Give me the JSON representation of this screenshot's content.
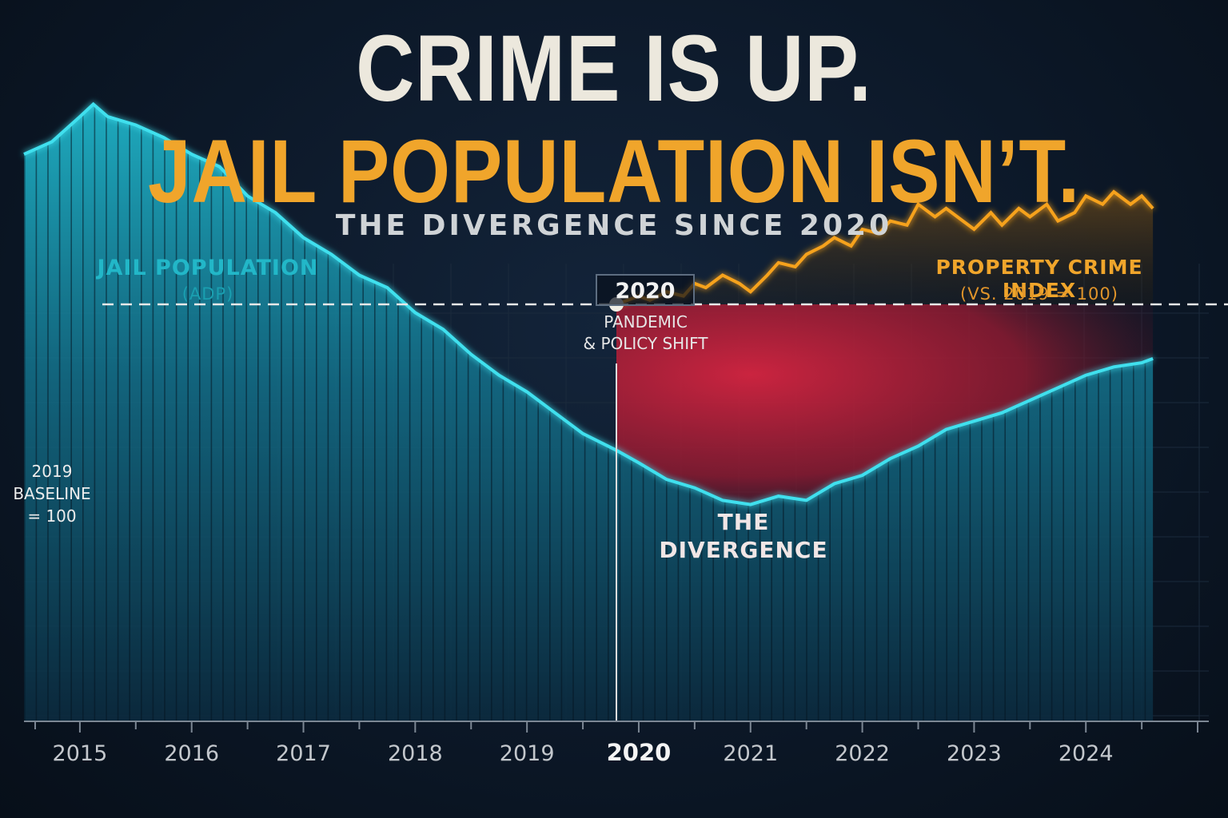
{
  "title": {
    "line1": "CRIME IS UP.",
    "line2": "JAIL POPULATION ISN’T.",
    "subtitle": "THE DIVERGENCE SINCE 2020"
  },
  "colors": {
    "jail": "#27c4d6",
    "crime": "#f29a1f",
    "divergence": "#c8203a",
    "title_accent": "#f0a52b"
  },
  "event": {
    "year": "2020",
    "line1": "PANDEMIC",
    "line2": "& POLICY SHIFT"
  },
  "baseline": {
    "line1": "2019",
    "line2": "BASELINE",
    "line3": "= 100"
  },
  "divergence": {
    "line1": "THE",
    "line2": "DIVERGENCE"
  },
  "chart_data": {
    "type": "area",
    "x_type": "time",
    "xlim": [
      2014.5,
      2025.1
    ],
    "ylim": [
      0,
      150
    ],
    "grid": true,
    "tick_labels": [
      "2015",
      "2016",
      "2017",
      "2018",
      "2019",
      "2020",
      "2021",
      "2022",
      "2023",
      "2024"
    ],
    "tick_values": [
      2015,
      2016,
      2017,
      2018,
      2019,
      2020,
      2021,
      2022,
      2023,
      2024
    ],
    "baseline_value": 100,
    "event_x": 2019.8,
    "series": [
      {
        "name": "JAIL POPULATION",
        "subname": "(ADP)",
        "style": "area",
        "x": [
          2014.5,
          2014.75,
          2015.0,
          2015.12,
          2015.25,
          2015.5,
          2015.75,
          2016.0,
          2016.25,
          2016.5,
          2016.75,
          2017.0,
          2017.25,
          2017.5,
          2017.75,
          2018.0,
          2018.25,
          2018.5,
          2018.75,
          2019.0,
          2019.25,
          2019.5,
          2019.8,
          2020.0,
          2020.25,
          2020.5,
          2020.75,
          2021.0,
          2021.25,
          2021.5,
          2021.75,
          2022.0,
          2022.25,
          2022.5,
          2022.75,
          2023.0,
          2023.25,
          2023.5,
          2023.75,
          2024.0,
          2024.25,
          2024.5,
          2024.6
        ],
        "values": [
          136,
          139,
          145,
          148,
          145,
          143,
          140,
          136,
          133,
          126,
          122,
          116,
          112,
          107,
          104,
          98,
          94,
          88,
          83,
          79,
          74,
          69,
          65,
          62,
          58,
          56,
          53,
          52,
          54,
          53,
          57,
          59,
          63,
          66,
          70,
          72,
          74,
          77,
          80,
          83,
          85,
          86,
          87
        ]
      },
      {
        "name": "PROPERTY CRIME INDEX",
        "subname": "(VS. 2019 = 100)",
        "style": "line",
        "x": [
          2019.8,
          2020.0,
          2020.1,
          2020.25,
          2020.4,
          2020.5,
          2020.6,
          2020.75,
          2020.9,
          2021.0,
          2021.15,
          2021.25,
          2021.4,
          2021.5,
          2021.65,
          2021.75,
          2021.9,
          2022.0,
          2022.15,
          2022.25,
          2022.4,
          2022.5,
          2022.65,
          2022.75,
          2022.9,
          2023.0,
          2023.15,
          2023.25,
          2023.4,
          2023.5,
          2023.65,
          2023.75,
          2023.9,
          2024.0,
          2024.15,
          2024.25,
          2024.4,
          2024.5,
          2024.6
        ],
        "values": [
          100,
          102,
          101,
          103,
          102,
          105,
          104,
          107,
          105,
          103,
          107,
          110,
          109,
          112,
          114,
          116,
          114,
          118,
          117,
          120,
          119,
          124,
          121,
          123,
          120,
          118,
          122,
          119,
          123,
          121,
          124,
          120,
          122,
          126,
          124,
          127,
          124,
          126,
          123
        ]
      }
    ]
  }
}
